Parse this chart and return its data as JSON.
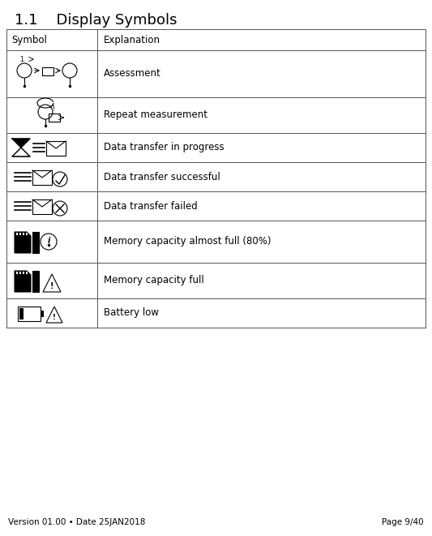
{
  "title": "1.1    Display Symbols",
  "col1_header": "Symbol",
  "col2_header": "Explanation",
  "rows": [
    {
      "explanation": "Assessment"
    },
    {
      "explanation": "Repeat measurement"
    },
    {
      "explanation": "Data transfer in progress"
    },
    {
      "explanation": "Data transfer successful"
    },
    {
      "explanation": "Data transfer failed"
    },
    {
      "explanation": "Memory capacity almost full (80%)"
    },
    {
      "explanation": "Memory capacity full"
    },
    {
      "explanation": "Battery low"
    }
  ],
  "footer_left": "Version 01.00 • Date 25JAN2018",
  "footer_right": "Page 9/40",
  "bg_color": "#ffffff",
  "text_color": "#000000",
  "border_color": "#555555",
  "title_fontsize": 13,
  "header_fontsize": 8.5,
  "body_fontsize": 8.5,
  "footer_fontsize": 7.5
}
